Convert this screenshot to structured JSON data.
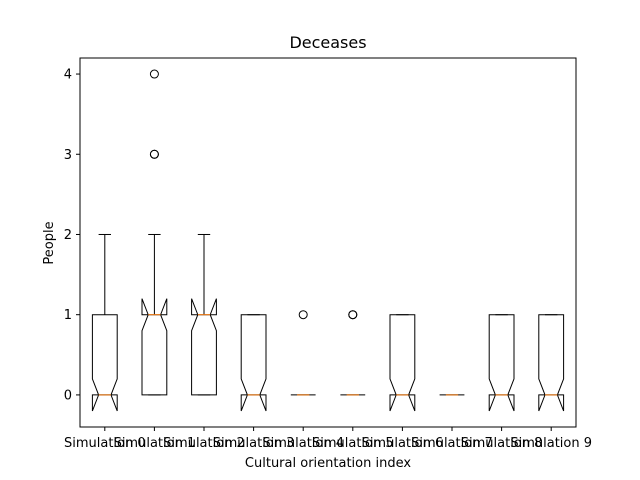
{
  "chart_data": {
    "type": "box",
    "title": "Deceases",
    "xlabel": "Cultural orientation index",
    "ylabel": "People",
    "ylim": [
      -0.4,
      4.2
    ],
    "yticks": [
      "0",
      "1",
      "2",
      "3",
      "4"
    ],
    "notched": true,
    "colors": {
      "box": "#000000",
      "median": "#ff7f0e"
    },
    "categories": [
      "Simulation 0",
      "Simulation 1",
      "Simulation 2",
      "Simulation 3",
      "Simulation 4",
      "Simulation 5",
      "Simulation 6",
      "Simulation 7",
      "Simulation 8",
      "Simulation 9"
    ],
    "boxes": [
      {
        "q1": 0,
        "median": 0,
        "q3": 1,
        "whisker_low": 0,
        "whisker_high": 2,
        "notch_low": -0.2,
        "notch_high": 0.2,
        "outliers": []
      },
      {
        "q1": 0,
        "median": 1,
        "q3": 1,
        "whisker_low": 0,
        "whisker_high": 2,
        "notch_low": 0.8,
        "notch_high": 1.2,
        "outliers": [
          3,
          3,
          4
        ]
      },
      {
        "q1": 0,
        "median": 1,
        "q3": 1,
        "whisker_low": 0,
        "whisker_high": 2,
        "notch_low": 0.8,
        "notch_high": 1.2,
        "outliers": []
      },
      {
        "q1": 0,
        "median": 0,
        "q3": 1,
        "whisker_low": 0,
        "whisker_high": 1,
        "notch_low": -0.2,
        "notch_high": 0.2,
        "outliers": []
      },
      {
        "q1": 0,
        "median": 0,
        "q3": 0,
        "whisker_low": 0,
        "whisker_high": 0,
        "notch_low": 0,
        "notch_high": 0,
        "outliers": [
          1
        ]
      },
      {
        "q1": 0,
        "median": 0,
        "q3": 0,
        "whisker_low": 0,
        "whisker_high": 0,
        "notch_low": 0,
        "notch_high": 0,
        "outliers": [
          1,
          1
        ]
      },
      {
        "q1": 0,
        "median": 0,
        "q3": 1,
        "whisker_low": 0,
        "whisker_high": 1,
        "notch_low": -0.2,
        "notch_high": 0.2,
        "outliers": []
      },
      {
        "q1": 0,
        "median": 0,
        "q3": 0,
        "whisker_low": 0,
        "whisker_high": 0,
        "notch_low": 0,
        "notch_high": 0,
        "outliers": []
      },
      {
        "q1": 0,
        "median": 0,
        "q3": 1,
        "whisker_low": 0,
        "whisker_high": 1,
        "notch_low": -0.2,
        "notch_high": 0.2,
        "outliers": []
      },
      {
        "q1": 0,
        "median": 0,
        "q3": 1,
        "whisker_low": 0,
        "whisker_high": 1,
        "notch_low": -0.2,
        "notch_high": 0.2,
        "outliers": []
      }
    ]
  }
}
